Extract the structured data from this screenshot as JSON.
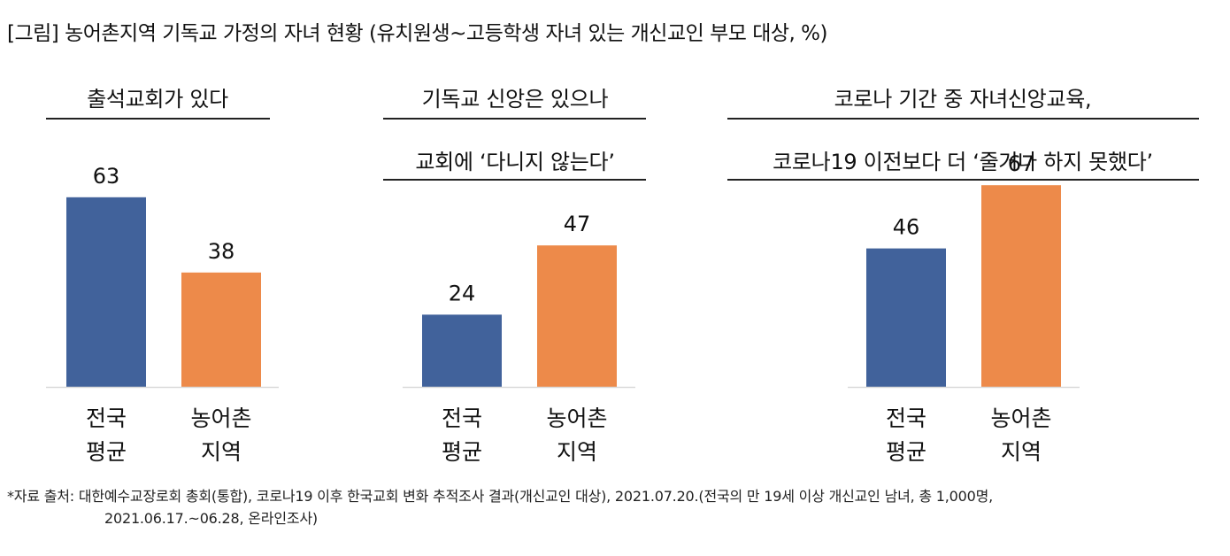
{
  "title": "[그림] 농어촌지역 기독교 가정의 자녀 현황 (유치원생~고등학생 자녀 있는 개신교인 부모 대상, %)",
  "source": {
    "line1": "*자료 출처: 대한예수교장로회 총회(통합), 코로나19 이후 한국교회 변화 추적조사 결과(개신교인 대상), 2021.07.20.(전국의 만 19세 이상 개신교인 남녀, 총 1,000명,",
    "line2": "2021.06.17.~06.28, 온라인조사)"
  },
  "colors": {
    "national": "#41629b",
    "rural": "#ed8a4a",
    "axis": "#d9d9d9"
  },
  "chart_data": [
    {
      "type": "bar",
      "subtitle_lines": [
        "출석교회가 있다"
      ],
      "categories": [
        [
          "전국",
          "평균"
        ],
        [
          "농어촌",
          "지역"
        ]
      ],
      "values": [
        63,
        38
      ]
    },
    {
      "type": "bar",
      "subtitle_lines": [
        "기독교 신앙은 있으나",
        "교회에 ‘다니지 않는다’"
      ],
      "categories": [
        [
          "전국",
          "평균"
        ],
        [
          "농어촌",
          "지역"
        ]
      ],
      "values": [
        24,
        47
      ]
    },
    {
      "type": "bar",
      "subtitle_lines": [
        "코로나 기간 중 자녀신앙교육,",
        "코로나19 이전보다 더 ‘줄거나 하지 못했다’"
      ],
      "categories": [
        [
          "전국",
          "평균"
        ],
        [
          "농어촌",
          "지역"
        ]
      ],
      "values": [
        46,
        67
      ]
    }
  ]
}
